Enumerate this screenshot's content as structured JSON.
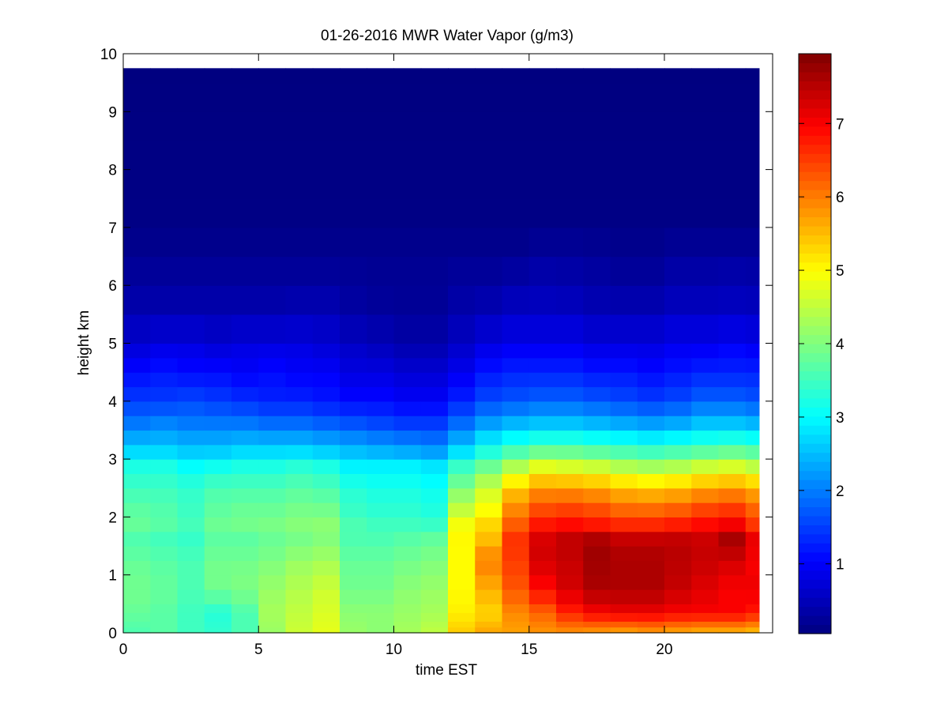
{
  "chart_data": {
    "type": "heatmap",
    "title": "01-26-2016 MWR Water Vapor (g/m3)",
    "xlabel": "time EST",
    "ylabel": "height km",
    "xlim": [
      0,
      24
    ],
    "ylim": [
      0,
      10
    ],
    "x_ticks": [
      "0",
      "5",
      "10",
      "15",
      "20"
    ],
    "y_ticks": [
      "0",
      "1",
      "2",
      "3",
      "4",
      "5",
      "6",
      "7",
      "8",
      "9",
      "10"
    ],
    "colorbar": {
      "colormap": "jet",
      "clim": [
        0.05,
        7.95
      ],
      "ticks": [
        "1",
        "2",
        "3",
        "4",
        "5",
        "6",
        "7"
      ]
    },
    "grid": false,
    "time_hours": [
      0,
      1,
      2,
      3,
      4,
      5,
      6,
      7,
      8,
      9,
      10,
      11,
      12,
      13,
      14,
      15,
      16,
      17,
      18,
      19,
      20,
      21,
      22,
      23
    ],
    "height_km": [
      0.0,
      0.1,
      0.2,
      0.35,
      0.5,
      0.75,
      1.0,
      1.25,
      1.5,
      1.75,
      2.0,
      2.25,
      2.5,
      2.75,
      3.0,
      3.25,
      3.5,
      3.75,
      4.0,
      4.25,
      4.5,
      4.75,
      5.0,
      5.5,
      6.0,
      6.5,
      7.0,
      7.5,
      8.0,
      8.5,
      9.0,
      9.5
    ],
    "profiles": {
      "h": [
        0.0,
        0.35,
        0.75,
        1.25,
        1.6,
        1.75,
        2.0,
        2.5,
        2.9,
        3.2,
        3.6,
        4.0,
        4.5,
        5.0,
        5.5,
        6.0,
        6.5,
        7.0,
        9.75
      ],
      "by_hour": [
        [
          3.6,
          3.8,
          3.9,
          3.8,
          3.6,
          3.8,
          3.8,
          3.5,
          3.2,
          2.6,
          2.0,
          1.5,
          1.1,
          0.7,
          0.45,
          0.3,
          0.2,
          0.1,
          0.05
        ],
        [
          3.7,
          3.7,
          3.8,
          3.7,
          3.5,
          3.7,
          3.7,
          3.5,
          3.2,
          2.6,
          2.1,
          1.5,
          1.2,
          0.8,
          0.45,
          0.3,
          0.2,
          0.1,
          0.05
        ],
        [
          3.5,
          3.5,
          3.6,
          3.6,
          3.4,
          3.6,
          3.5,
          3.4,
          3.0,
          2.5,
          2.0,
          1.6,
          1.1,
          0.8,
          0.45,
          0.3,
          0.2,
          0.1,
          0.05
        ],
        [
          3.4,
          3.3,
          3.9,
          3.9,
          3.7,
          3.9,
          3.8,
          3.6,
          3.1,
          2.5,
          2.0,
          1.5,
          1.1,
          0.7,
          0.45,
          0.3,
          0.2,
          0.1,
          0.05
        ],
        [
          3.6,
          3.6,
          4.0,
          3.9,
          3.7,
          3.9,
          3.9,
          3.6,
          3.2,
          2.6,
          2.0,
          1.4,
          1.0,
          0.8,
          0.45,
          0.3,
          0.2,
          0.1,
          0.05
        ],
        [
          4.2,
          4.3,
          4.2,
          4.0,
          3.8,
          4.0,
          3.9,
          3.6,
          3.2,
          2.6,
          1.9,
          1.3,
          1.1,
          0.8,
          0.45,
          0.3,
          0.2,
          0.1,
          0.05
        ],
        [
          4.6,
          4.5,
          4.4,
          4.2,
          3.9,
          4.1,
          4.0,
          3.7,
          3.3,
          2.6,
          1.9,
          1.3,
          1.0,
          0.8,
          0.5,
          0.3,
          0.2,
          0.1,
          0.05
        ],
        [
          4.8,
          4.7,
          4.6,
          4.3,
          4.0,
          4.2,
          4.0,
          3.6,
          3.2,
          2.5,
          1.8,
          1.2,
          1.0,
          0.7,
          0.5,
          0.3,
          0.2,
          0.1,
          0.05
        ],
        [
          4.2,
          4.1,
          3.9,
          3.8,
          3.6,
          3.7,
          3.5,
          3.3,
          2.9,
          2.4,
          1.7,
          1.1,
          0.8,
          0.6,
          0.35,
          0.25,
          0.2,
          0.1,
          0.05
        ],
        [
          4.1,
          4.1,
          3.9,
          3.8,
          3.6,
          3.6,
          3.4,
          3.2,
          2.9,
          2.3,
          1.6,
          1.1,
          0.8,
          0.5,
          0.3,
          0.2,
          0.2,
          0.1,
          0.05
        ],
        [
          4.3,
          4.2,
          4.1,
          3.9,
          3.7,
          3.6,
          3.4,
          3.2,
          2.9,
          2.2,
          1.5,
          1.0,
          0.7,
          0.4,
          0.25,
          0.2,
          0.2,
          0.1,
          0.05
        ],
        [
          4.5,
          4.3,
          4.2,
          4.0,
          3.8,
          3.6,
          3.3,
          3.1,
          2.8,
          2.1,
          1.5,
          1.0,
          0.7,
          0.4,
          0.25,
          0.2,
          0.2,
          0.1,
          0.05
        ],
        [
          5.4,
          5.1,
          5.0,
          5.0,
          5.0,
          5.1,
          4.7,
          4.0,
          3.4,
          2.6,
          1.9,
          1.3,
          0.9,
          0.6,
          0.4,
          0.3,
          0.2,
          0.1,
          0.05
        ],
        [
          5.7,
          5.3,
          5.6,
          6.0,
          5.5,
          5.5,
          5.1,
          4.6,
          3.8,
          3.1,
          2.3,
          1.6,
          1.2,
          0.8,
          0.5,
          0.3,
          0.2,
          0.1,
          0.05
        ],
        [
          5.7,
          5.9,
          6.3,
          6.5,
          6.6,
          6.4,
          6.1,
          5.4,
          4.3,
          3.4,
          2.5,
          1.7,
          1.3,
          0.9,
          0.6,
          0.4,
          0.2,
          0.1,
          0.05
        ],
        [
          5.8,
          6.2,
          6.9,
          7.3,
          7.3,
          7.0,
          6.6,
          5.8,
          4.7,
          3.6,
          2.6,
          1.8,
          1.3,
          0.9,
          0.6,
          0.45,
          0.3,
          0.1,
          0.05
        ],
        [
          5.8,
          6.7,
          7.3,
          7.4,
          7.5,
          7.1,
          6.7,
          5.8,
          4.6,
          3.6,
          2.6,
          1.8,
          1.3,
          0.9,
          0.6,
          0.4,
          0.3,
          0.1,
          0.05
        ],
        [
          5.7,
          7.0,
          7.6,
          7.7,
          7.7,
          7.0,
          6.6,
          5.7,
          4.5,
          3.5,
          2.5,
          1.7,
          1.2,
          0.8,
          0.5,
          0.35,
          0.25,
          0.1,
          0.05
        ],
        [
          5.6,
          7.1,
          7.6,
          7.6,
          7.5,
          6.9,
          6.4,
          5.5,
          4.3,
          3.4,
          2.4,
          1.6,
          1.2,
          0.8,
          0.5,
          0.3,
          0.2,
          0.1,
          0.05
        ],
        [
          5.7,
          7.1,
          7.6,
          7.6,
          7.5,
          6.9,
          6.4,
          5.4,
          4.2,
          3.3,
          2.3,
          1.5,
          1.1,
          0.8,
          0.5,
          0.3,
          0.2,
          0.1,
          0.05
        ],
        [
          5.6,
          7.0,
          7.4,
          7.5,
          7.5,
          7.0,
          6.5,
          5.5,
          4.3,
          3.4,
          2.4,
          1.6,
          1.2,
          0.9,
          0.6,
          0.4,
          0.3,
          0.1,
          0.05
        ],
        [
          5.5,
          7.0,
          7.2,
          7.4,
          7.4,
          7.1,
          6.7,
          5.7,
          4.5,
          3.5,
          2.6,
          1.8,
          1.3,
          0.9,
          0.6,
          0.4,
          0.3,
          0.1,
          0.05
        ],
        [
          5.5,
          7.0,
          7.0,
          7.3,
          7.7,
          7.3,
          6.8,
          5.8,
          4.6,
          3.6,
          2.6,
          1.8,
          1.3,
          1.0,
          0.6,
          0.45,
          0.3,
          0.1,
          0.05
        ],
        [
          5.4,
          6.8,
          7.1,
          7.0,
          7.2,
          6.7,
          6.4,
          5.6,
          4.4,
          3.5,
          2.5,
          1.7,
          1.3,
          0.9,
          0.6,
          0.4,
          0.3,
          0.1,
          0.05
        ]
      ]
    }
  }
}
